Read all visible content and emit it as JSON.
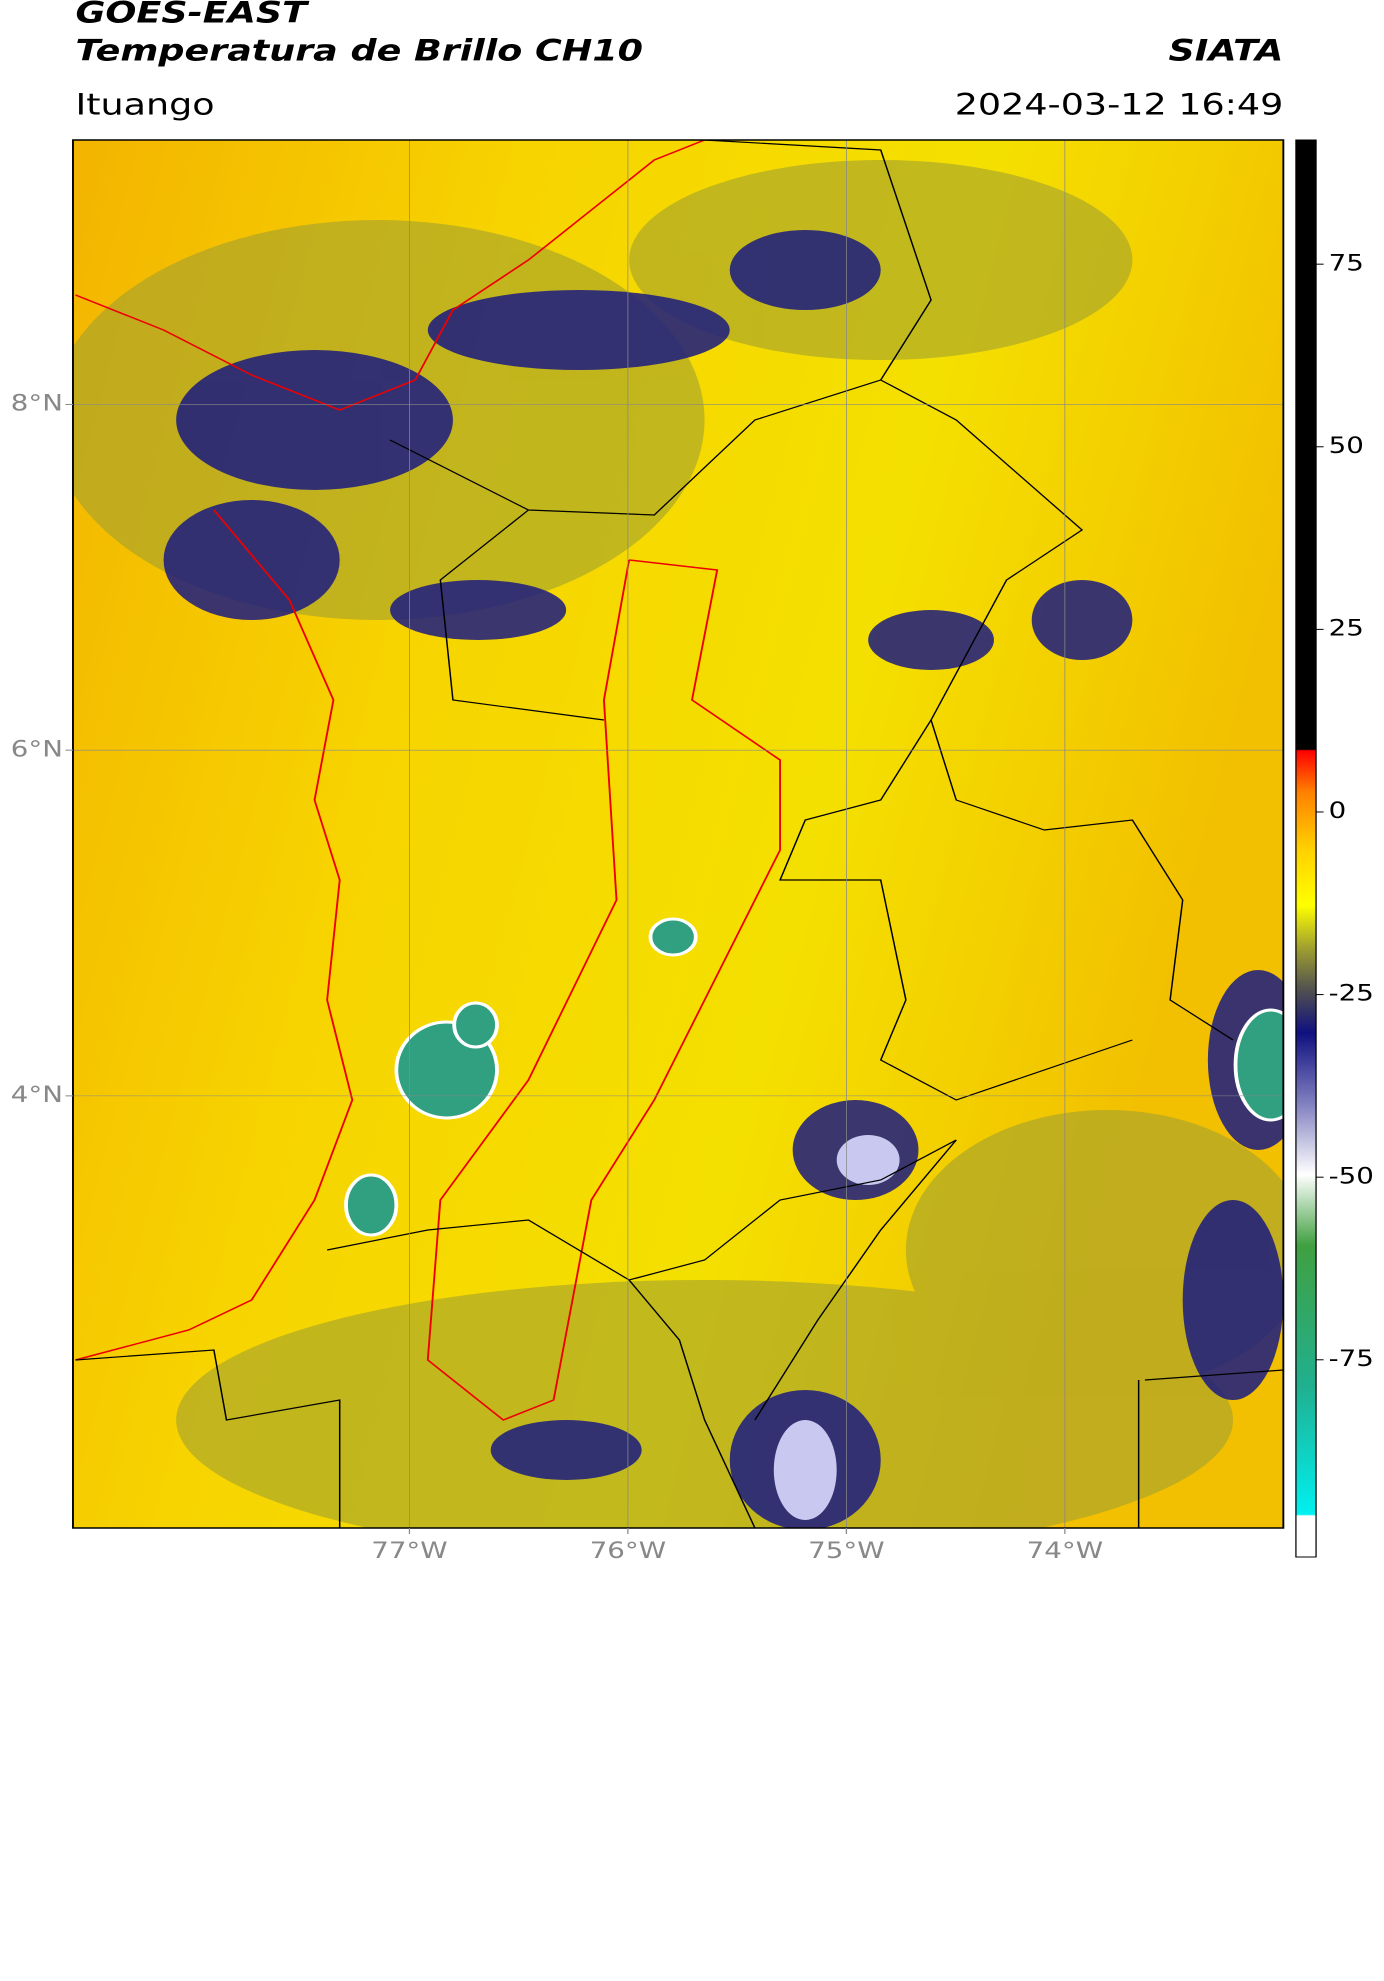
{
  "header": {
    "title": "GOES-EAST",
    "subtitle": "Temperatura de Brillo CH10",
    "source": "SIATA",
    "location": "Ituango",
    "datetime": "2024-03-12 16:49"
  },
  "map": {
    "xlim": [
      -78.54,
      -73.0
    ],
    "ylim": [
      1.5,
      9.53
    ],
    "lat_ticks": [
      {
        "value": 8,
        "label": "8°N"
      },
      {
        "value": 6,
        "label": "6°N"
      },
      {
        "value": 4,
        "label": "4°N"
      }
    ],
    "lon_ticks": [
      {
        "value": -77,
        "label": "77°W"
      },
      {
        "value": -76,
        "label": "76°W"
      },
      {
        "value": -75,
        "label": "75°W"
      },
      {
        "value": -74,
        "label": "74°W"
      }
    ],
    "grid": true
  },
  "colorbar": {
    "lim": [
      -102,
      92
    ],
    "ticks": [
      75,
      50,
      25,
      0,
      -25,
      -50,
      -75
    ]
  }
}
